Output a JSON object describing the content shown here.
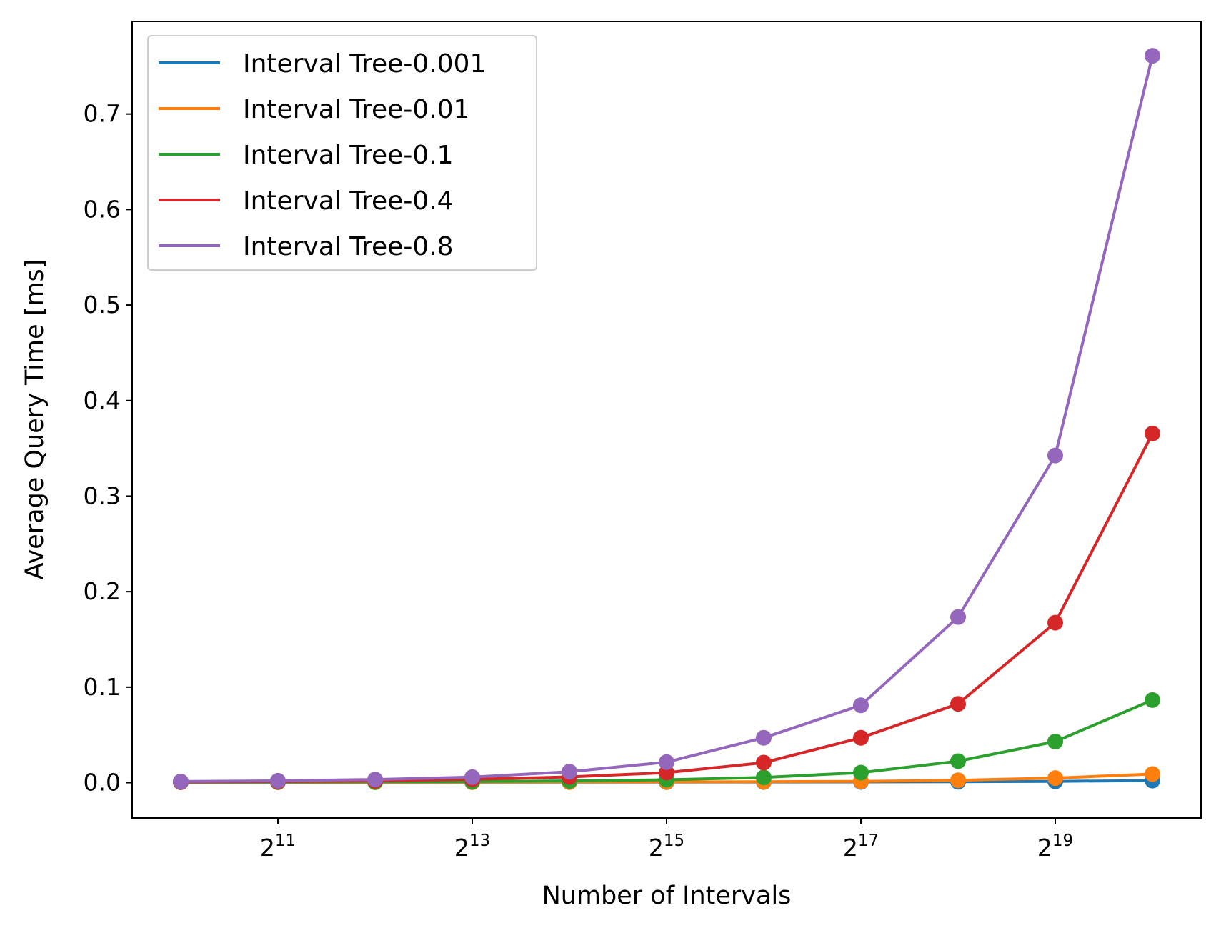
{
  "chart_data": {
    "type": "line",
    "title": "",
    "xlabel": "Number of Intervals",
    "ylabel": "Average Query Time [ms]",
    "x_scale": "log2",
    "x": [
      1024,
      2048,
      4096,
      8192,
      16384,
      32768,
      65536,
      131072,
      262144,
      524288,
      1048576
    ],
    "x_ticks": [
      {
        "value": 2048,
        "base": "2",
        "exp": "11"
      },
      {
        "value": 8192,
        "base": "2",
        "exp": "13"
      },
      {
        "value": 32768,
        "base": "2",
        "exp": "15"
      },
      {
        "value": 131072,
        "base": "2",
        "exp": "17"
      },
      {
        "value": 524288,
        "base": "2",
        "exp": "19"
      }
    ],
    "y_ticks": [
      "0.0",
      "0.1",
      "0.2",
      "0.3",
      "0.4",
      "0.5",
      "0.6",
      "0.7"
    ],
    "ylim": [
      -0.037,
      0.797
    ],
    "grid": false,
    "legend_position": "top-left",
    "series": [
      {
        "name": "Interval Tree-0.001",
        "color": "#1f77b4",
        "values": [
          0.0005,
          0.0005,
          0.0005,
          0.0005,
          0.0006,
          0.0006,
          0.0007,
          0.0008,
          0.001,
          0.0014,
          0.0022
        ]
      },
      {
        "name": "Interval Tree-0.01",
        "color": "#ff7f0e",
        "values": [
          0.0005,
          0.0005,
          0.0005,
          0.0006,
          0.0007,
          0.0008,
          0.001,
          0.0014,
          0.0025,
          0.0048,
          0.009
        ]
      },
      {
        "name": "Interval Tree-0.1",
        "color": "#2ca02c",
        "values": [
          0.0006,
          0.0007,
          0.0009,
          0.0012,
          0.0018,
          0.003,
          0.0055,
          0.0105,
          0.0225,
          0.043,
          0.0865
        ]
      },
      {
        "name": "Interval Tree-0.4",
        "color": "#d62728",
        "values": [
          0.0008,
          0.0012,
          0.002,
          0.0035,
          0.006,
          0.0105,
          0.021,
          0.047,
          0.0825,
          0.1675,
          0.3655
        ]
      },
      {
        "name": "Interval Tree-0.8",
        "color": "#9467bd",
        "values": [
          0.0012,
          0.002,
          0.0033,
          0.0058,
          0.0115,
          0.0215,
          0.047,
          0.081,
          0.1735,
          0.3425,
          0.761
        ]
      }
    ]
  }
}
